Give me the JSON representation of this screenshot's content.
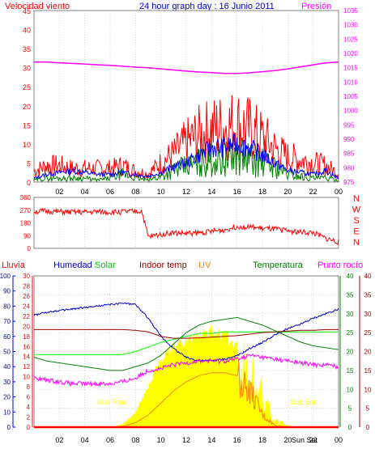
{
  "header": {
    "title": "24 hour graph day : 16 Junio 2011",
    "left_label": "Velocidad viento",
    "right_label": "Presión"
  },
  "colors": {
    "wind": "#ff0000",
    "gust_line": "#0000ff",
    "wind_avg": "#008000",
    "pressure": "#ff00ff",
    "direction": "#ff0000",
    "rain": "#ff0000",
    "humidity": "#0000cc",
    "solar": "#00ff00",
    "solar_fill": "#ffff00",
    "indoor": "#990000",
    "uv": "#ff8000",
    "temp": "#008000",
    "dew": "#ff00ff",
    "grid": "#aaaaaa"
  },
  "panel_wind": {
    "left_ticks": [
      "0",
      "5",
      "10",
      "15",
      "20",
      "25",
      "30",
      "35",
      "40",
      "45"
    ],
    "right_ticks": [
      "975",
      "980",
      "985",
      "990",
      "995",
      "1000",
      "1005",
      "1010",
      "1015",
      "1020",
      "1025",
      "1030",
      "1035"
    ]
  },
  "panel_dir": {
    "left_ticks": [
      "0",
      "90",
      "180",
      "270",
      "360"
    ],
    "compass": [
      "N",
      "W",
      "S",
      "E",
      "N"
    ]
  },
  "panel_temp": {
    "legend": {
      "rain": "Lluvia",
      "humidity": "Humedad",
      "solar": "Solar",
      "indoor": "Indoor temp",
      "uv": "UV",
      "temp": "Temperatura",
      "dew": "Punto rocío"
    },
    "axis_humidity": [
      "0",
      "10",
      "20",
      "30",
      "40",
      "50",
      "60",
      "70",
      "80",
      "90",
      "100"
    ],
    "axis_rain": [
      "0",
      "2",
      "4",
      "6",
      "8",
      "10",
      "12",
      "14",
      "16",
      "18",
      "20",
      "22",
      "24",
      "26",
      "28",
      "30"
    ],
    "axis_temp_green": [
      "0",
      "5",
      "10",
      "15",
      "20",
      "25",
      "30",
      "35",
      "40"
    ],
    "axis_temp_red": [
      "0",
      "5",
      "10",
      "15",
      "20",
      "25",
      "30",
      "35",
      "40"
    ],
    "sunrise_label": "Sun Rise",
    "sunset_label": "Sun Set"
  },
  "x_ticks": [
    "02",
    "04",
    "06",
    "08",
    "10",
    "12",
    "14",
    "16",
    "18",
    "20",
    "22",
    "00"
  ],
  "bottom_sunset_label": "Sun Set",
  "chart_data": [
    {
      "type": "line",
      "title": "24 hour graph day : 16 Junio 2011",
      "ylabel": "Velocidad viento",
      "y2label": "Presión",
      "ylim": [
        0,
        45
      ],
      "y2lim": [
        975,
        1035
      ],
      "x_hours": [
        0,
        1,
        2,
        3,
        4,
        5,
        6,
        7,
        8,
        9,
        10,
        11,
        12,
        13,
        14,
        15,
        16,
        17,
        18,
        19,
        20,
        21,
        22,
        23,
        24
      ],
      "series": [
        {
          "name": "Presión",
          "axis": "right",
          "values": [
            1017,
            1017,
            1016.7,
            1016.5,
            1016.3,
            1016,
            1015.8,
            1015.5,
            1015.2,
            1015,
            1014.6,
            1014.2,
            1013.8,
            1013.5,
            1013.3,
            1013,
            1013,
            1013.2,
            1013.6,
            1014,
            1014.6,
            1015.3,
            1016,
            1016.7,
            1017
          ]
        },
        {
          "values": [
            1,
            2,
            2.5,
            3,
            2.5,
            2,
            2,
            2.5,
            2,
            1.5,
            2.5,
            4,
            5,
            7,
            9,
            9,
            10,
            9,
            7,
            5,
            3,
            2.5,
            2,
            3,
            1
          ]
        },
        {
          "values": [
            4,
            6,
            6,
            5,
            5,
            5,
            5,
            6,
            4,
            3,
            7,
            10,
            14,
            17,
            19,
            20,
            21,
            19,
            16,
            12,
            9,
            8,
            7,
            6,
            3
          ]
        },
        {
          "values": [
            0.5,
            1,
            1,
            1,
            1,
            0.5,
            1,
            2,
            1,
            0.5,
            1.5,
            3,
            4,
            5,
            6,
            6,
            7,
            6,
            5,
            4,
            2,
            1.5,
            1,
            1,
            0.5
          ]
        }
      ]
    },
    {
      "type": "line",
      "ylim": [
        0,
        360
      ],
      "x_hours": [
        0,
        1,
        2,
        3,
        4,
        5,
        6,
        7,
        8,
        8.5,
        9,
        10,
        11,
        12,
        13,
        14,
        15,
        16,
        17,
        18,
        19,
        20,
        21,
        22,
        23,
        24
      ],
      "series": [
        {
          "values": [
            260,
            262,
            258,
            255,
            255,
            258,
            255,
            258,
            260,
            262,
            80,
            100,
            110,
            105,
            110,
            120,
            130,
            155,
            150,
            140,
            135,
            125,
            115,
            110,
            70,
            45
          ]
        }
      ]
    },
    {
      "type": "line",
      "x_hours": [
        0,
        1,
        2,
        3,
        4,
        5,
        6,
        7,
        8,
        9,
        10,
        11,
        12,
        13,
        14,
        15,
        16,
        17,
        18,
        19,
        20,
        21,
        22,
        23,
        24
      ],
      "series": [
        {
          "name": "Humedad",
          "axis": "humidity",
          "ylim": [
            0,
            100
          ],
          "values": [
            74,
            76,
            77,
            78,
            79,
            80,
            81,
            82,
            81,
            72,
            60,
            52,
            46,
            44,
            44,
            45,
            47,
            52,
            56,
            61,
            65,
            68,
            72,
            75,
            78
          ]
        },
        {
          "name": "Solar",
          "axis": "humidity",
          "ylim": [
            0,
            100
          ],
          "values": [
            48,
            48,
            48,
            48,
            48,
            48,
            48,
            48,
            50,
            53,
            56,
            58,
            60,
            62,
            62,
            63,
            63,
            63,
            63,
            63,
            63,
            63,
            63,
            63,
            63
          ]
        },
        {
          "name": "Indoor temp",
          "axis": "temp",
          "ylim": [
            0,
            40
          ],
          "values": [
            25.8,
            25.8,
            25.8,
            25.8,
            25.8,
            25.8,
            25.8,
            25.8,
            25.6,
            25.2,
            24,
            23.5,
            23.5,
            23.6,
            23.8,
            24,
            24.2,
            24.6,
            25,
            25.2,
            25.4,
            25.6,
            25.6,
            25.8,
            25.8
          ]
        },
        {
          "name": "Temperatura",
          "axis": "temp",
          "ylim": [
            0,
            40
          ],
          "values": [
            18.5,
            17.5,
            17,
            16.5,
            16,
            15.5,
            15,
            15,
            16,
            17,
            19,
            22,
            25,
            27,
            28,
            28.5,
            29,
            28,
            27,
            25.5,
            24,
            22.5,
            21.5,
            21,
            20.5
          ]
        },
        {
          "name": "Punto rocío",
          "axis": "temp",
          "ylim": [
            0,
            40
          ],
          "values": [
            13,
            12.5,
            12,
            11.5,
            11.5,
            11.5,
            11.5,
            12,
            13,
            15,
            15.5,
            16.5,
            17,
            17.5,
            17.5,
            17.5,
            18,
            19,
            18.5,
            18,
            17.5,
            17,
            16.5,
            16.5,
            16
          ]
        },
        {
          "name": "UV",
          "axis": "humidity",
          "ylim": [
            0,
            100
          ],
          "values": [
            0,
            0,
            0,
            0,
            0,
            0,
            0,
            0.5,
            3,
            8,
            16,
            24,
            30,
            34,
            36,
            36,
            34,
            24,
            8,
            1,
            0,
            0,
            0,
            0,
            0
          ]
        },
        {
          "name": "Lluvia",
          "axis": "rain",
          "ylim": [
            0,
            30
          ],
          "values": [
            0,
            0,
            0,
            0,
            0,
            0,
            0,
            0,
            0,
            0,
            0,
            0,
            0,
            0,
            0,
            0,
            0,
            0,
            0,
            0,
            0,
            0,
            0,
            0,
            0
          ]
        }
      ],
      "solar_fill_values": [
        0,
        0,
        0,
        0,
        0,
        0,
        0,
        2,
        10,
        28,
        46,
        55,
        58,
        64,
        65,
        62,
        55,
        42,
        25,
        6,
        1,
        0,
        0,
        0,
        0
      ]
    }
  ]
}
